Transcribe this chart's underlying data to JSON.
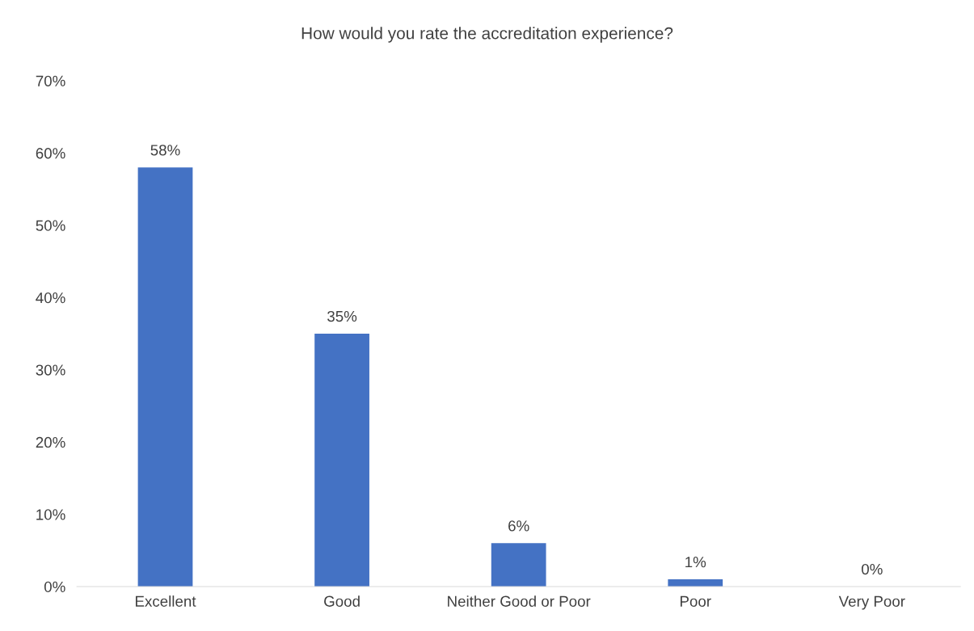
{
  "chart_data": {
    "type": "bar",
    "title": "How would you rate the accreditation experience?",
    "categories": [
      "Excellent",
      "Good",
      "Neither Good or Poor",
      "Poor",
      "Very Poor"
    ],
    "values": [
      58,
      35,
      6,
      1,
      0
    ],
    "value_labels": [
      "58%",
      "35%",
      "6%",
      "1%",
      "0%"
    ],
    "color": "#4472c4",
    "ylim": [
      0,
      70
    ],
    "yticks": [
      {
        "value": 0,
        "label": "0%"
      },
      {
        "value": 10,
        "label": "10%"
      },
      {
        "value": 20,
        "label": "20%"
      },
      {
        "value": 30,
        "label": "30%"
      },
      {
        "value": 40,
        "label": "40%"
      },
      {
        "value": 50,
        "label": "50%"
      },
      {
        "value": 60,
        "label": "60%"
      },
      {
        "value": 70,
        "label": "70%"
      }
    ],
    "grid": false,
    "legend": false
  }
}
